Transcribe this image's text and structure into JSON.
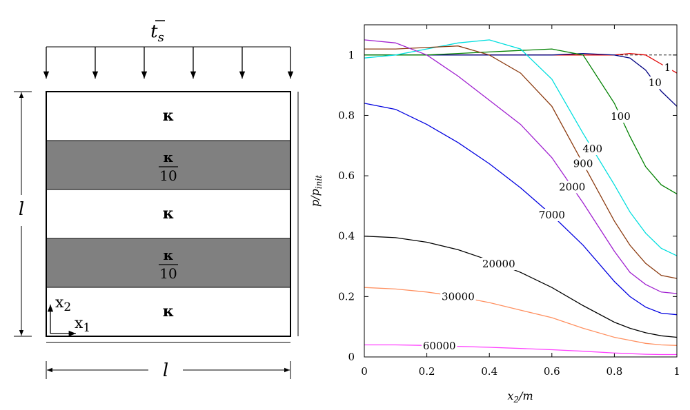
{
  "diagram": {
    "load": "t",
    "load_sub": "s",
    "layers": [
      {
        "num": "κ"
      },
      {
        "num": "κ",
        "den": "10"
      },
      {
        "num": "κ"
      },
      {
        "num": "κ",
        "den": "10"
      },
      {
        "num": "κ"
      }
    ],
    "dim_vertical": "l",
    "dim_horizontal": "l",
    "axis_x": "x",
    "axis_x_sub": "1",
    "axis_y": "x",
    "axis_y_sub": "2"
  },
  "chart_data": {
    "type": "line",
    "xlabel_parts": [
      "x",
      "2",
      "/m"
    ],
    "ylabel_parts": [
      "p/p",
      "init"
    ],
    "x": [
      0,
      0.1,
      0.2,
      0.3,
      0.4,
      0.5,
      0.6,
      0.7,
      0.8,
      0.85,
      0.9,
      0.95,
      1
    ],
    "xlim": [
      0,
      1
    ],
    "xticks": [
      0,
      0.2,
      0.4,
      0.6,
      0.8,
      1
    ],
    "ylim": [
      0,
      1.1
    ],
    "yticks": [
      0,
      0.2,
      0.4,
      0.6,
      0.8,
      1
    ],
    "reference_line": 1,
    "series": [
      {
        "name": "1",
        "color": "#e00000",
        "values": [
          1,
          1,
          1,
          1,
          1,
          1,
          1,
          1,
          1,
          1.005,
          1.0,
          0.97,
          0.94
        ]
      },
      {
        "name": "10",
        "color": "#000080",
        "values": [
          1,
          1,
          1,
          1,
          1,
          1,
          1,
          1.005,
          1.0,
          0.99,
          0.95,
          0.88,
          0.83
        ]
      },
      {
        "name": "100",
        "color": "#008000",
        "values": [
          1,
          1,
          1,
          1.005,
          1.01,
          1.015,
          1.02,
          1.0,
          0.84,
          0.73,
          0.63,
          0.57,
          0.54
        ]
      },
      {
        "name": "400",
        "color": "#00dede",
        "values": [
          0.99,
          1.0,
          1.02,
          1.04,
          1.05,
          1.02,
          0.92,
          0.74,
          0.57,
          0.48,
          0.41,
          0.36,
          0.335
        ]
      },
      {
        "name": "900",
        "color": "#8b3a0f",
        "values": [
          1.02,
          1.02,
          1.025,
          1.03,
          1.0,
          0.94,
          0.83,
          0.64,
          0.45,
          0.37,
          0.31,
          0.27,
          0.26
        ]
      },
      {
        "name": "2000",
        "color": "#a020d0",
        "values": [
          1.05,
          1.04,
          1.0,
          0.93,
          0.85,
          0.77,
          0.66,
          0.51,
          0.35,
          0.28,
          0.24,
          0.215,
          0.21
        ]
      },
      {
        "name": "7000",
        "color": "#0000e0",
        "values": [
          0.84,
          0.82,
          0.77,
          0.71,
          0.64,
          0.56,
          0.47,
          0.37,
          0.25,
          0.2,
          0.165,
          0.145,
          0.14
        ]
      },
      {
        "name": "20000",
        "color": "#000000",
        "values": [
          0.4,
          0.395,
          0.38,
          0.355,
          0.32,
          0.28,
          0.23,
          0.17,
          0.115,
          0.095,
          0.08,
          0.07,
          0.065
        ]
      },
      {
        "name": "30000",
        "color": "#ff9060",
        "values": [
          0.23,
          0.225,
          0.215,
          0.2,
          0.18,
          0.155,
          0.13,
          0.095,
          0.065,
          0.055,
          0.045,
          0.04,
          0.038
        ]
      },
      {
        "name": "60000",
        "color": "#ff40ff",
        "values": [
          0.04,
          0.04,
          0.038,
          0.035,
          0.032,
          0.028,
          0.024,
          0.019,
          0.013,
          0.011,
          0.009,
          0.008,
          0.008
        ]
      }
    ]
  }
}
